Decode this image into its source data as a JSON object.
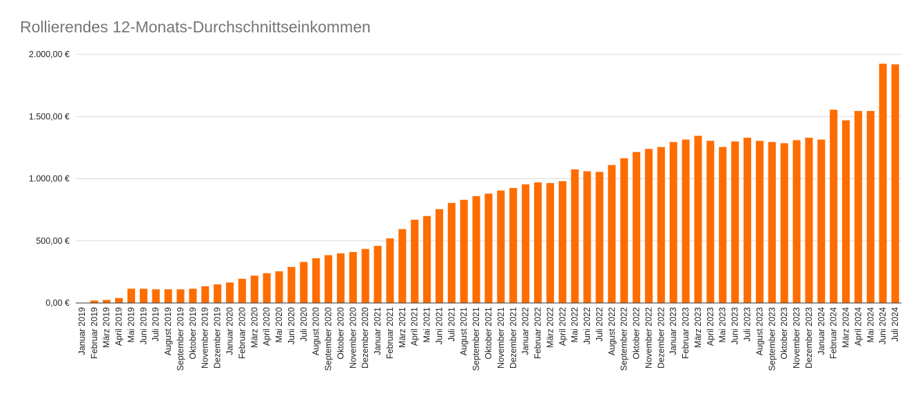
{
  "chart_data": {
    "type": "bar",
    "title": "Rollierendes 12-Monats-Durchschnittseinkommen",
    "xlabel": "",
    "ylabel": "",
    "ylim": [
      0,
      2000
    ],
    "yticks": [
      0,
      500,
      1000,
      1500,
      2000
    ],
    "ytick_labels": [
      "0,00 €",
      "500,00 €",
      "1.000,00 €",
      "1.500,00 €",
      "2.000,00 €"
    ],
    "grid": true,
    "legend": "none",
    "bar_color": "#ff6d01",
    "categories": [
      "Januar 2019",
      "Februar 2019",
      "März 2019",
      "April 2019",
      "Mai 2019",
      "Juni 2019",
      "Juli 2019",
      "August 2019",
      "September 2019",
      "Oktober 2019",
      "November 2019",
      "Dezember 2019",
      "Januar 2020",
      "Februar 2020",
      "März 2020",
      "April 2020",
      "Mai 2020",
      "Juni 2020",
      "Juli 2020",
      "August 2020",
      "September 2020",
      "Oktober 2020",
      "November 2020",
      "Dezember 2020",
      "Januar 2021",
      "Februar 2021",
      "März 2021",
      "April 2021",
      "Mai 2021",
      "Juni 2021",
      "Juli 2021",
      "August 2021",
      "September 2021",
      "Oktober 2021",
      "November 2021",
      "Dezember 2021",
      "Januar 2022",
      "Februar 2022",
      "März 2022",
      "April 2022",
      "Mai 2022",
      "Juni 2022",
      "Juli 2022",
      "August 2022",
      "September 2022",
      "Oktober 2022",
      "November 2022",
      "Dezember 2022",
      "Januar 2023",
      "Februar 2023",
      "März 2023",
      "April 2023",
      "Mai 2023",
      "Juni 2023",
      "Juli 2023",
      "August 2023",
      "September 2023",
      "Oktober 2023",
      "November 2023",
      "Dezember 2023",
      "Januar 2024",
      "Februar 2024",
      "März 2024",
      "April 2024",
      "Mai 2024",
      "Juni 2024",
      "Juli 2024"
    ],
    "values": [
      0,
      20,
      25,
      40,
      115,
      115,
      110,
      110,
      110,
      115,
      135,
      150,
      165,
      195,
      220,
      240,
      255,
      290,
      330,
      360,
      385,
      400,
      410,
      435,
      460,
      520,
      595,
      670,
      700,
      755,
      805,
      830,
      860,
      880,
      905,
      925,
      955,
      970,
      965,
      980,
      1075,
      1060,
      1055,
      1110,
      1165,
      1215,
      1240,
      1255,
      1295,
      1315,
      1345,
      1305,
      1255,
      1300,
      1330,
      1305,
      1295,
      1285,
      1310,
      1330,
      1315,
      1555,
      1470,
      1545,
      1545,
      1925,
      1920
    ]
  }
}
